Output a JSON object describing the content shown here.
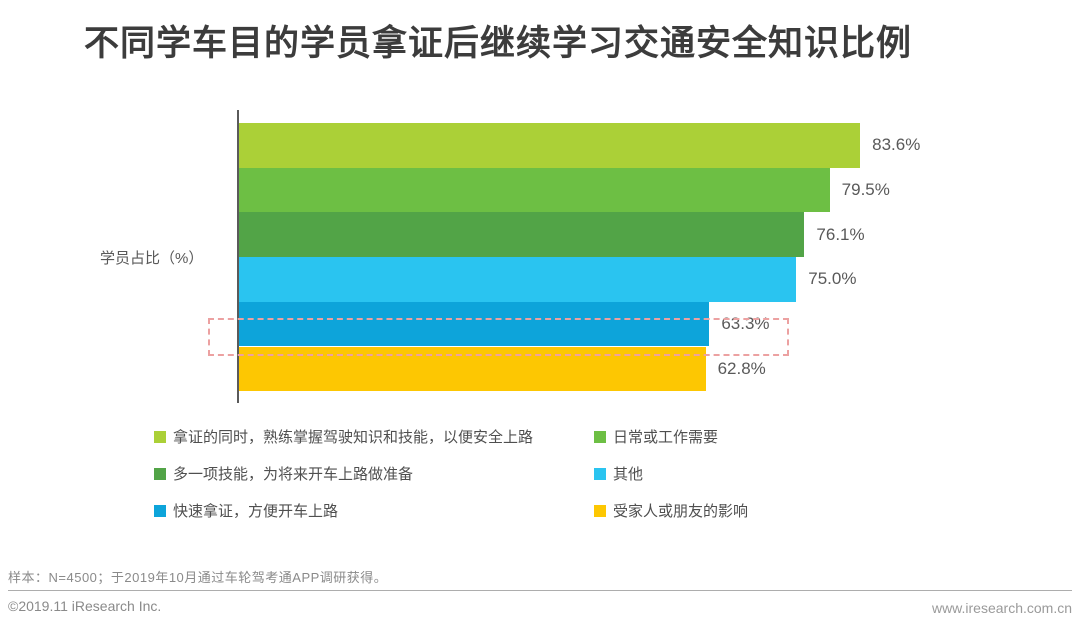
{
  "title": "不同学车目的学员拿证后继续学习交通安全知识比例",
  "chart_data": {
    "type": "bar",
    "orientation": "horizontal",
    "title": "不同学车目的学员拿证后继续学习交通安全知识比例",
    "ylabel": "学员占比（%）",
    "xlabel": "",
    "xlim": [
      0,
      100
    ],
    "grid": false,
    "legend_position": "bottom",
    "categories": [
      "拿证的同时，熟练掌握驾驶知识和技能，以便安全上路",
      "日常或工作需要",
      "多一项技能，为将来开车上路做准备",
      "其他",
      "快速拿证，方便开车上路",
      "受家人或朋友的影响"
    ],
    "series": [
      {
        "label": "拿证的同时，熟练掌握驾驶知识和技能，以便安全上路",
        "value": 83.6,
        "display": "83.6%",
        "color": "#abd037"
      },
      {
        "label": "日常或工作需要",
        "value": 79.5,
        "display": "79.5%",
        "color": "#6dbf44"
      },
      {
        "label": "多一项技能，为将来开车上路做准备",
        "value": 76.1,
        "display": "76.1%",
        "color": "#52a447"
      },
      {
        "label": "其他",
        "value": 75.0,
        "display": "75.0%",
        "color": "#2ac4f0"
      },
      {
        "label": "快速拿证，方便开车上路",
        "value": 63.3,
        "display": "63.3%",
        "color": "#0da4da"
      },
      {
        "label": "受家人或朋友的影响",
        "value": 62.8,
        "display": "62.8%",
        "color": "#fdc702"
      }
    ],
    "highlight": {
      "highlighted_value": "63.3%",
      "style": "dashed-box",
      "color": "#eca1a1"
    }
  },
  "legend_columns": [
    [
      0,
      2,
      4
    ],
    [
      1,
      3,
      5
    ]
  ],
  "footer": {
    "note": "样本：N=4500；于2019年10月通过车轮驾考通APP调研获得。",
    "copyright": "©2019.11 iResearch Inc.",
    "website": "www.iresearch.com.cn"
  }
}
